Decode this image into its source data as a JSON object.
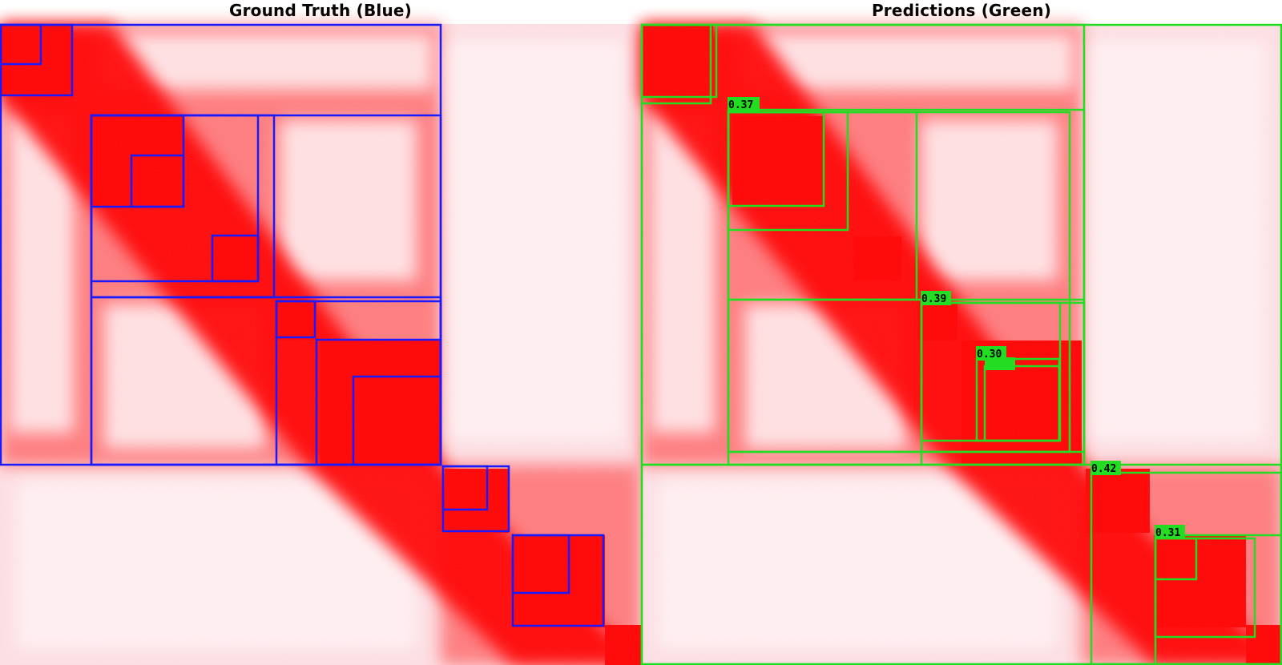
{
  "panels": {
    "left": {
      "title": "Ground Truth (Blue)",
      "box_color": "#1a1aff"
    },
    "right": {
      "title": "Predictions (Green)",
      "box_color": "#22dd22"
    }
  },
  "colors": {
    "heatmap_strong": "#ff0000",
    "heatmap_background": "#fdeef0",
    "label_background": "#22dd22"
  },
  "prediction_scores": [
    {
      "text": "0.37"
    },
    {
      "text": "0.39"
    },
    {
      "text": "0.30"
    },
    {
      "text": "0.42"
    },
    {
      "text": "0.31"
    }
  ]
}
